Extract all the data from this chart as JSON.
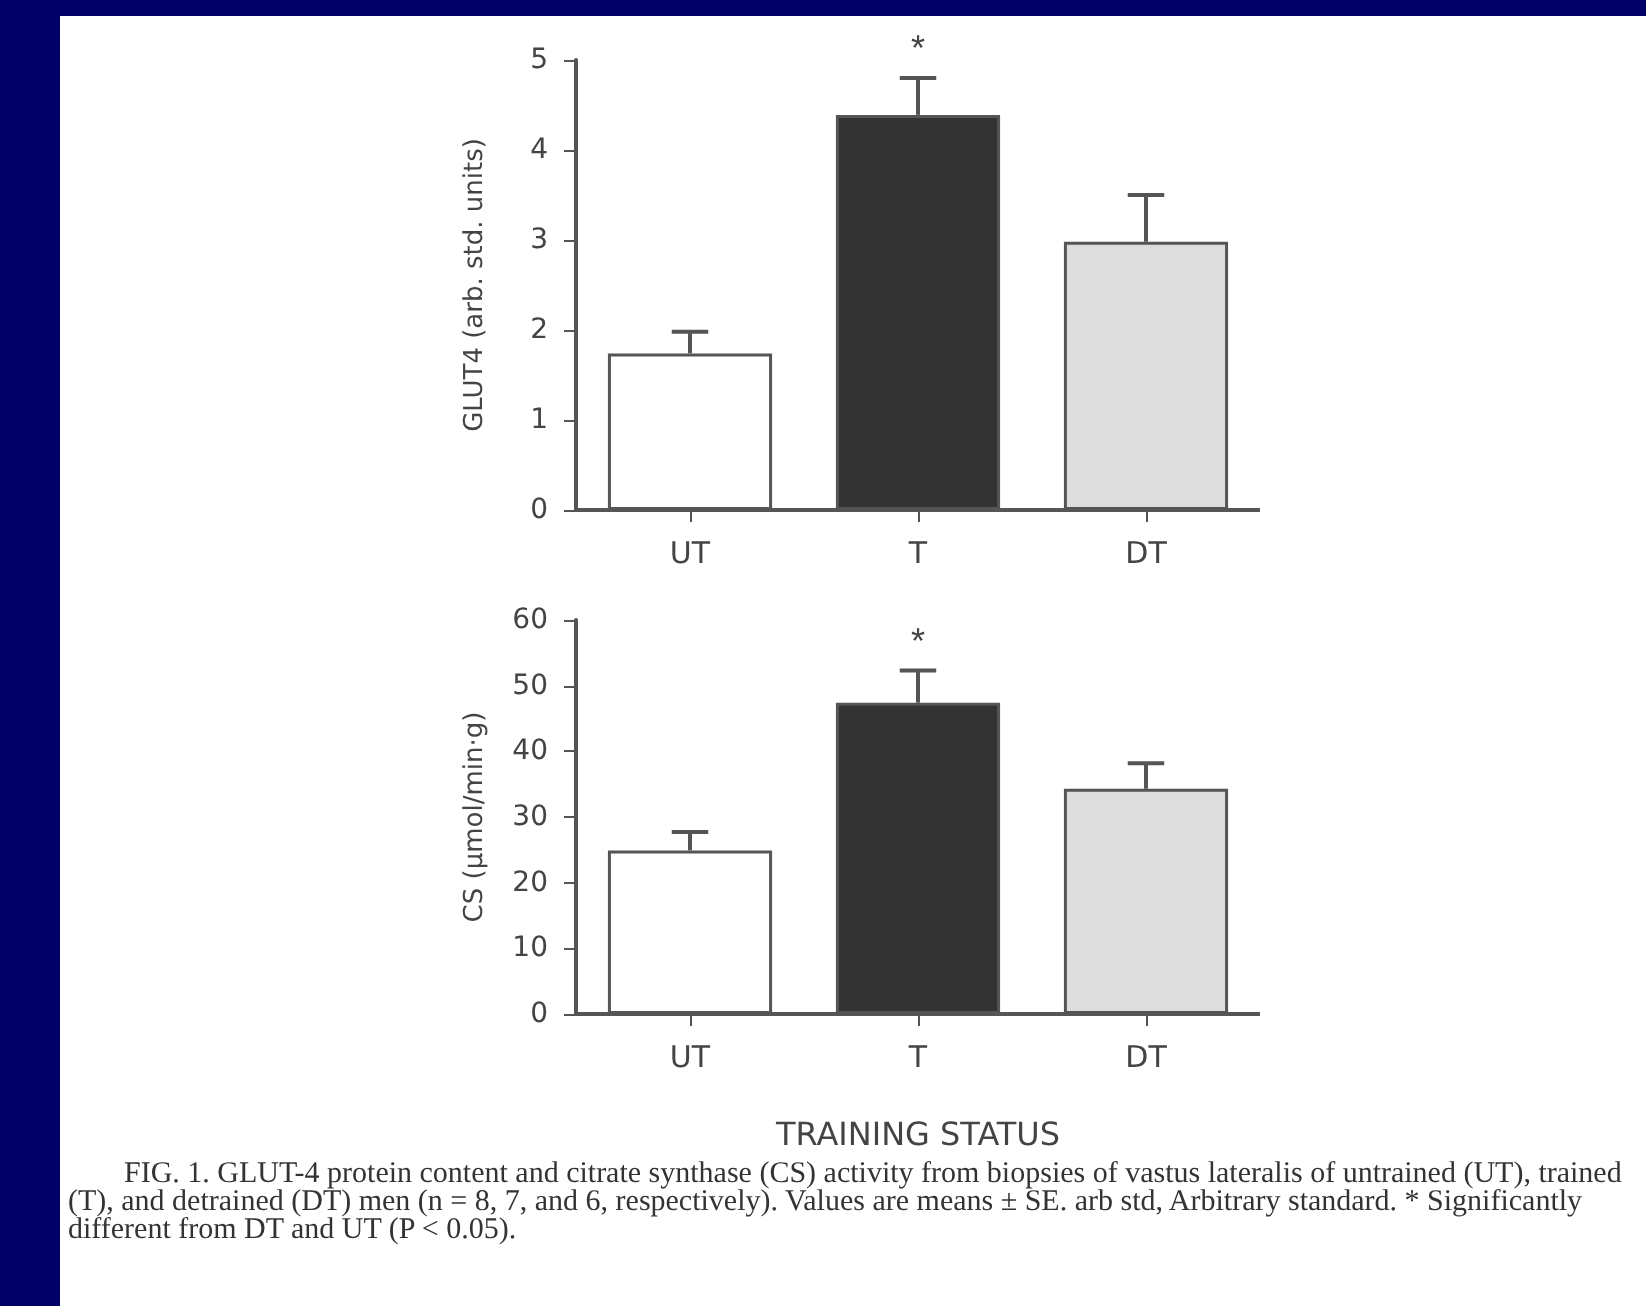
{
  "chart_data": [
    {
      "type": "bar",
      "ylabel": "GLUT4 (arb. std. units)",
      "categories": [
        "UT",
        "T",
        "DT"
      ],
      "values": [
        1.74,
        4.39,
        2.98
      ],
      "errors": [
        0.24,
        0.41,
        0.52
      ],
      "colors": [
        "#ffffff",
        "#333333",
        "#dddddd"
      ],
      "ylim": [
        0,
        5
      ],
      "yticks": [
        0,
        1,
        2,
        3,
        4,
        5
      ],
      "annotations": [
        {
          "text": "*",
          "x": "T",
          "y": 4.8
        }
      ]
    },
    {
      "type": "bar",
      "ylabel": "CS (µmol/min·g)",
      "xlabel": "TRAINING STATUS",
      "categories": [
        "UT",
        "T",
        "DT"
      ],
      "values": [
        24.9,
        47.4,
        34.3
      ],
      "errors": [
        2.8,
        4.9,
        3.9
      ],
      "colors": [
        "#ffffff",
        "#333333",
        "#dddddd"
      ],
      "ylim": [
        0,
        60
      ],
      "yticks": [
        0,
        10,
        20,
        30,
        40,
        50,
        60
      ],
      "annotations": [
        {
          "text": "*",
          "x": "T",
          "y": 52.3
        },
        "FIG. 1. GLUT-4 protein content and citrate synthase (CS) activity from biopsies of vastus lateralis of untrained (UT), trained (T), and detrained (DT) men (n = 8, 7, and 6, respectively). Values are means ± SE. arb std, Arbitrary standard. * Significantly different from DT and UT (P < 0.05)."
      ]
    }
  ]
}
